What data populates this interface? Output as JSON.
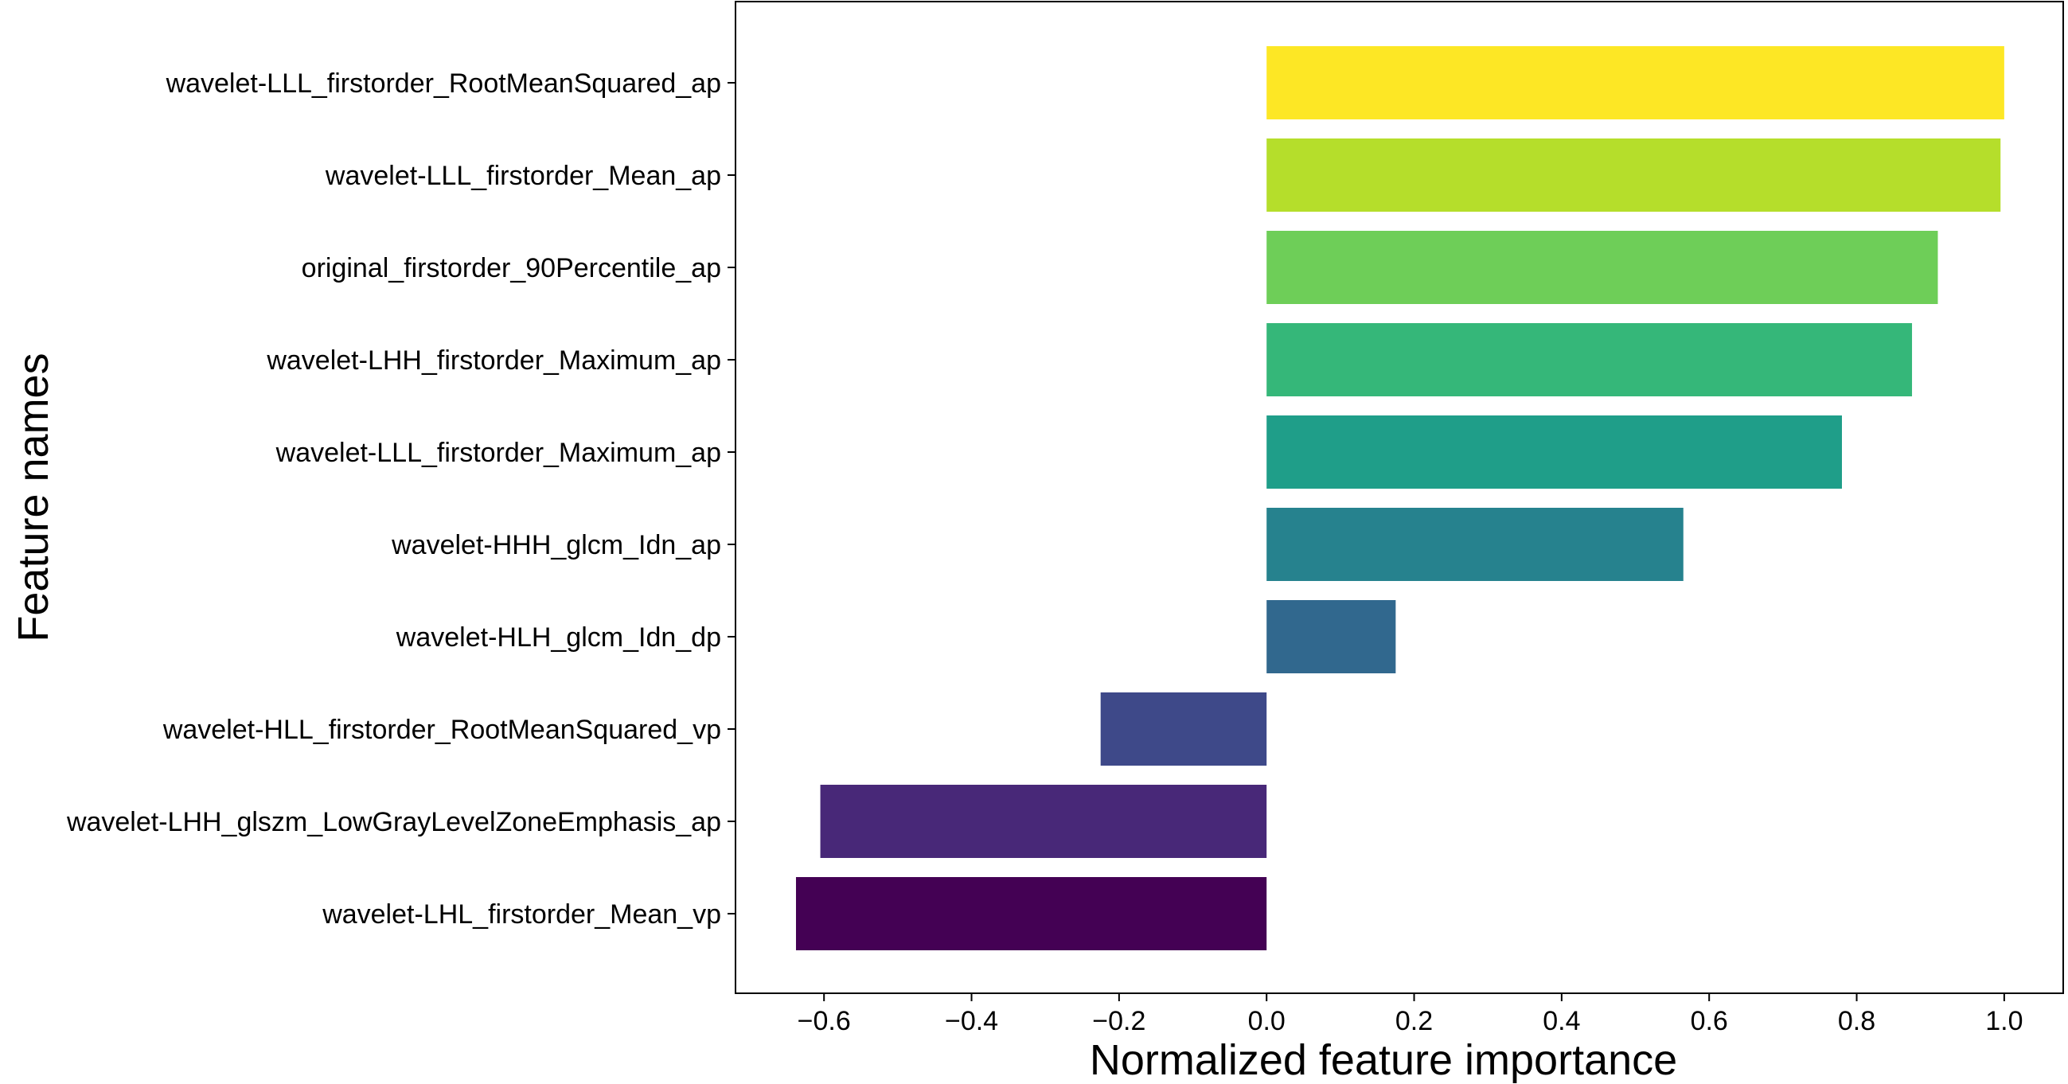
{
  "chart_data": {
    "type": "bar",
    "orientation": "horizontal",
    "xlabel": "Normalized feature importance",
    "ylabel": "Feature names",
    "xlim": [
      -0.72,
      1.08
    ],
    "xticks": [
      -0.6,
      -0.4,
      -0.2,
      0.0,
      0.2,
      0.4,
      0.6,
      0.8,
      1.0
    ],
    "xtick_labels": [
      "−0.6",
      "−0.4",
      "−0.2",
      "0.0",
      "0.2",
      "0.4",
      "0.6",
      "0.8",
      "1.0"
    ],
    "grid": false,
    "categories": [
      "wavelet-LLL_firstorder_RootMeanSquared_ap",
      "wavelet-LLL_firstorder_Mean_ap",
      "original_firstorder_90Percentile_ap",
      "wavelet-LHH_firstorder_Maximum_ap",
      "wavelet-LLL_firstorder_Maximum_ap",
      "wavelet-HHH_glcm_Idn_ap",
      "wavelet-HLH_glcm_Idn_dp",
      "wavelet-HLL_firstorder_RootMeanSquared_vp",
      "wavelet-LHH_glszm_LowGrayLevelZoneEmphasis_ap",
      "wavelet-LHL_firstorder_Mean_vp"
    ],
    "values": [
      1.0,
      0.995,
      0.91,
      0.875,
      0.78,
      0.565,
      0.175,
      -0.225,
      -0.605,
      -0.638
    ],
    "colors": [
      "#fde725",
      "#b5de2b",
      "#6ece58",
      "#35b779",
      "#1f9e89",
      "#26828e",
      "#31688e",
      "#3e4989",
      "#482878",
      "#440154"
    ]
  }
}
